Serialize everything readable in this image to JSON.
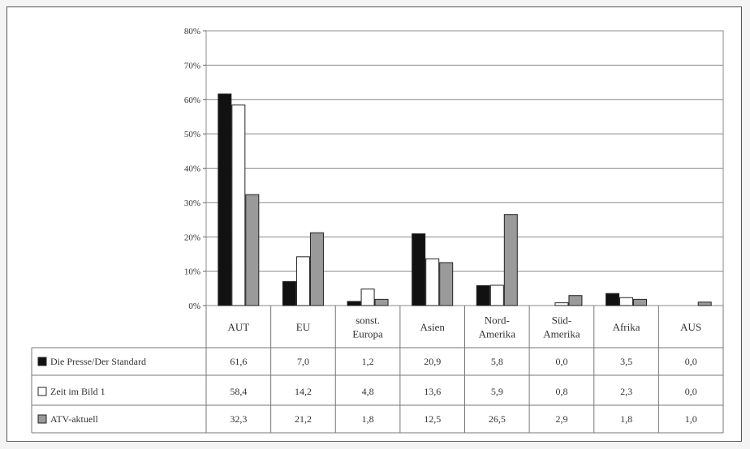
{
  "chart_data": {
    "type": "bar",
    "categories": [
      "AUT",
      "EU",
      "sonst. Europa",
      "Asien",
      "Nord-Amerika",
      "Süd-Amerika",
      "Afrika",
      "AUS"
    ],
    "category_lines": [
      [
        "AUT"
      ],
      [
        "EU"
      ],
      [
        "sonst.",
        "Europa"
      ],
      [
        "Asien"
      ],
      [
        "Nord-",
        "Amerika"
      ],
      [
        "Süd-",
        "Amerika"
      ],
      [
        "Afrika"
      ],
      [
        "AUS"
      ]
    ],
    "series": [
      {
        "name": "Die Presse/Der Standard",
        "values": [
          61.6,
          7.0,
          1.2,
          20.9,
          5.8,
          0.0,
          3.5,
          0.0
        ],
        "labels": [
          "61,6",
          "7,0",
          "1,2",
          "20,9",
          "5,8",
          "0,0",
          "3,5",
          "0,0"
        ],
        "color": "#111111"
      },
      {
        "name": "Zeit im Bild 1",
        "values": [
          58.4,
          14.2,
          4.8,
          13.6,
          5.9,
          0.8,
          2.3,
          0.0
        ],
        "labels": [
          "58,4",
          "14,2",
          "4,8",
          "13,6",
          "5,9",
          "0,8",
          "2,3",
          "0,0"
        ],
        "color": "#ffffff"
      },
      {
        "name": "ATV-aktuell",
        "values": [
          32.3,
          21.2,
          1.8,
          12.5,
          26.5,
          2.9,
          1.8,
          1.0
        ],
        "labels": [
          "32,3",
          "21,2",
          "1,8",
          "12,5",
          "26,5",
          "2,9",
          "1,8",
          "1,0"
        ],
        "color": "#9a9a9a"
      }
    ],
    "ylim": [
      0,
      80
    ],
    "yticks": [
      "0%",
      "10%",
      "20%",
      "30%",
      "40%",
      "50%",
      "60%",
      "70%",
      "80%"
    ],
    "grid": true,
    "legend": "data-table-left",
    "title": "",
    "xlabel": "",
    "ylabel": ""
  }
}
